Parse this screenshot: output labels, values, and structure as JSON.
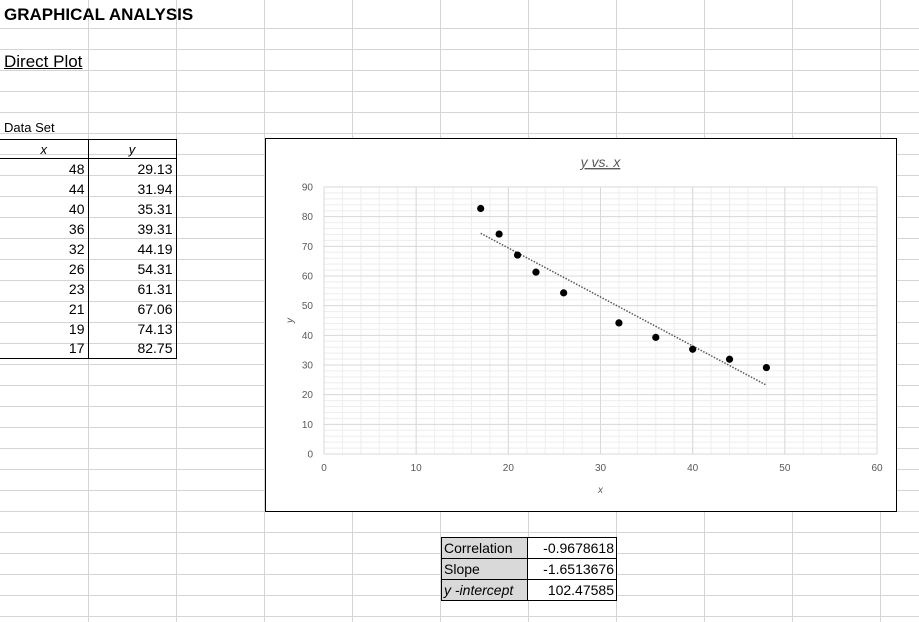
{
  "sheet": {
    "title": "GRAPHICAL ANALYSIS",
    "subtitle": "Direct Plot",
    "dataset_label": "Data Set"
  },
  "table": {
    "x_header": "x",
    "y_header": "y",
    "rows": [
      {
        "x": "48",
        "y": "29.13"
      },
      {
        "x": "44",
        "y": "31.94"
      },
      {
        "x": "40",
        "y": "35.31"
      },
      {
        "x": "36",
        "y": "39.31"
      },
      {
        "x": "32",
        "y": "44.19"
      },
      {
        "x": "26",
        "y": "54.31"
      },
      {
        "x": "23",
        "y": "61.31"
      },
      {
        "x": "21",
        "y": "67.06"
      },
      {
        "x": "19",
        "y": "74.13"
      },
      {
        "x": "17",
        "y": "82.75"
      }
    ]
  },
  "stats": {
    "correlation_label": "Correlation",
    "correlation_value": "-0.9678618",
    "slope_label": "Slope",
    "slope_value": "-1.6513676",
    "intercept_label": "y -intercept",
    "intercept_value": "102.47585"
  },
  "chart_data": {
    "type": "scatter",
    "title": "y vs. x",
    "xlabel": "x",
    "ylabel": "y",
    "xlim": [
      0,
      60
    ],
    "ylim": [
      0,
      90
    ],
    "x_ticks": [
      0,
      10,
      20,
      30,
      40,
      50,
      60
    ],
    "y_ticks": [
      0,
      10,
      20,
      30,
      40,
      50,
      60,
      70,
      80,
      90
    ],
    "grid": true,
    "minor_grid": true,
    "series": [
      {
        "x": [
          48,
          44,
          40,
          36,
          32,
          26,
          23,
          21,
          19,
          17
        ],
        "y": [
          29.13,
          31.94,
          35.31,
          39.31,
          44.19,
          54.31,
          61.31,
          67.06,
          74.13,
          82.75
        ]
      }
    ],
    "trendline": {
      "style": "dotted",
      "x_range": [
        17,
        48
      ],
      "slope": -1.6513676,
      "intercept": 102.47585
    },
    "marker_color": "#000000",
    "grid_color": "#d9d9d9"
  }
}
